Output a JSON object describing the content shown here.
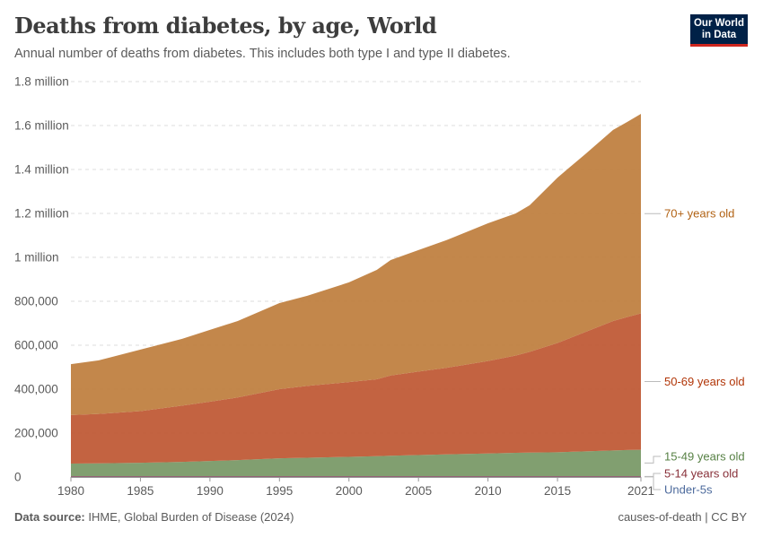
{
  "header": {
    "title": "Deaths from diabetes, by age, World",
    "subtitle": "Annual number of deaths from diabetes. This includes both type I and type II diabetes.",
    "logo_text": "Our World in Data"
  },
  "footer": {
    "source_label": "Data source:",
    "source": "IHME, Global Burden of Disease (2024)",
    "license": "causes-of-death | CC BY"
  },
  "chart_data": {
    "type": "area",
    "stacked": true,
    "title": "Deaths from diabetes, by age, World",
    "x": [
      1980,
      1982,
      1985,
      1988,
      1990,
      1992,
      1995,
      1997,
      2000,
      2002,
      2003,
      2005,
      2007,
      2010,
      2012,
      2013,
      2015,
      2017,
      2019,
      2020,
      2021
    ],
    "x_ticks": [
      "1980",
      "1985",
      "1990",
      "1995",
      "2000",
      "2005",
      "2010",
      "2015",
      "2021"
    ],
    "y_ticks": [
      "0",
      "200,000",
      "400,000",
      "600,000",
      "800,000",
      "1 million",
      "1.2 million",
      "1.4 million",
      "1.6 million",
      "1.8 million"
    ],
    "ylim": [
      0,
      1800000
    ],
    "grid": "horizontal dashed",
    "legend": "right (labels at series ends)",
    "series": [
      {
        "name": "Under-5s",
        "color": "#4c6a9c",
        "label_color": "#4c6a9c",
        "values": [
          1500,
          1500,
          1500,
          1500,
          1500,
          1500,
          1500,
          1500,
          1500,
          1500,
          1500,
          1500,
          1500,
          1500,
          1500,
          1500,
          1500,
          1500,
          1500,
          1500,
          1500
        ]
      },
      {
        "name": "5-14 years old",
        "color": "#9a3a44",
        "label_color": "#883039",
        "values": [
          2500,
          2500,
          2500,
          2500,
          2500,
          2500,
          2500,
          2500,
          2500,
          2500,
          2500,
          2500,
          2500,
          2500,
          2500,
          2500,
          2500,
          2500,
          2500,
          2500,
          2500
        ]
      },
      {
        "name": "15-49 years old",
        "color": "#7a9a68",
        "label_color": "#578145",
        "values": [
          57000,
          58000,
          61000,
          65000,
          69000,
          73000,
          81000,
          84000,
          88000,
          91000,
          93000,
          96000,
          99000,
          103000,
          106000,
          107000,
          109000,
          113000,
          117000,
          119000,
          120000
        ]
      },
      {
        "name": "50-69 years old",
        "color": "#c05b37",
        "label_color": "#b13507",
        "values": [
          221000,
          225000,
          235000,
          256000,
          270000,
          285000,
          315000,
          327000,
          340000,
          350000,
          365000,
          380000,
          394000,
          421000,
          443000,
          459000,
          497000,
          543000,
          589000,
          605000,
          621000
        ]
      },
      {
        "name": "70+ years old",
        "color": "#c08141",
        "label_color": "#b16214",
        "values": [
          232000,
          244000,
          280000,
          304000,
          327000,
          348000,
          392000,
          410000,
          454000,
          498000,
          526000,
          553000,
          581000,
          627000,
          647000,
          667000,
          753000,
          810000,
          870000,
          888000,
          908000
        ]
      }
    ]
  }
}
